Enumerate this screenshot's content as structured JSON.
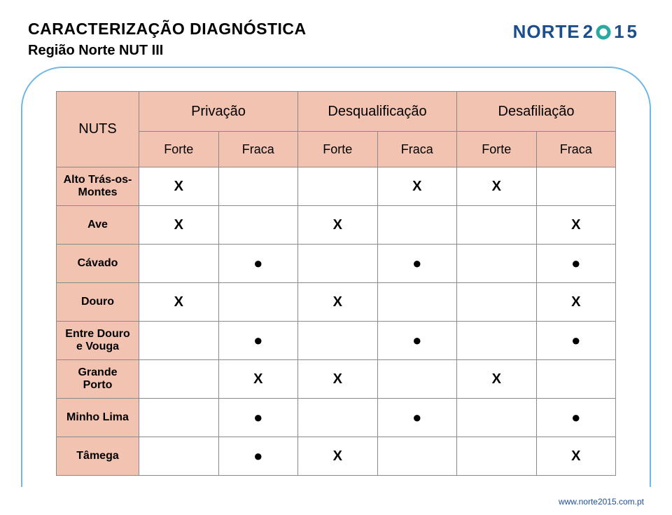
{
  "header": {
    "title": "CARACTERIZAÇÃO DIAGNÓSTICA",
    "subtitle": "Região Norte NUT III"
  },
  "logo": {
    "word_main": "NORTE",
    "word_year_a": "2",
    "word_year_b": "1",
    "word_year_c": "5",
    "color_main": "#1b4e8a",
    "color_teal": "#2aa9a0",
    "color_orange": "#e28b2f"
  },
  "table": {
    "corner_label": "NUTS",
    "group_headers": [
      "Privação",
      "Desqualificação",
      "Desafiliação"
    ],
    "sub_headers": [
      "Forte",
      "Fraca",
      "Forte",
      "Fraca",
      "Forte",
      "Fraca"
    ],
    "rows": [
      {
        "label": "Alto Trás-os-\nMontes",
        "cells": [
          "X",
          "",
          "",
          "X",
          "X",
          ""
        ]
      },
      {
        "label": "Ave",
        "cells": [
          "X",
          "",
          "X",
          "",
          "",
          "X"
        ]
      },
      {
        "label": "Cávado",
        "cells": [
          "",
          "●",
          "",
          "●",
          "",
          "●"
        ]
      },
      {
        "label": "Douro",
        "cells": [
          "X",
          "",
          "X",
          "",
          "",
          "X"
        ]
      },
      {
        "label": "Entre Douro\ne Vouga",
        "cells": [
          "",
          "●",
          "",
          "●",
          "",
          "●"
        ]
      },
      {
        "label": "Grande\nPorto",
        "cells": [
          "",
          "X",
          "X",
          "",
          "X",
          ""
        ]
      },
      {
        "label": "Minho Lima",
        "cells": [
          "",
          "●",
          "",
          "●",
          "",
          "●"
        ]
      },
      {
        "label": "Tâmega",
        "cells": [
          "",
          "●",
          "X",
          "",
          "",
          "X"
        ]
      }
    ],
    "colors": {
      "header_bg": "#f2c3b0",
      "cell_bg": "#ffffff",
      "border": "#8a8a8a"
    }
  },
  "footer": {
    "url": "www.norte2015.com.pt",
    "url_color": "#1a4f9c"
  },
  "frame": {
    "border_color": "#6fb7e6"
  }
}
